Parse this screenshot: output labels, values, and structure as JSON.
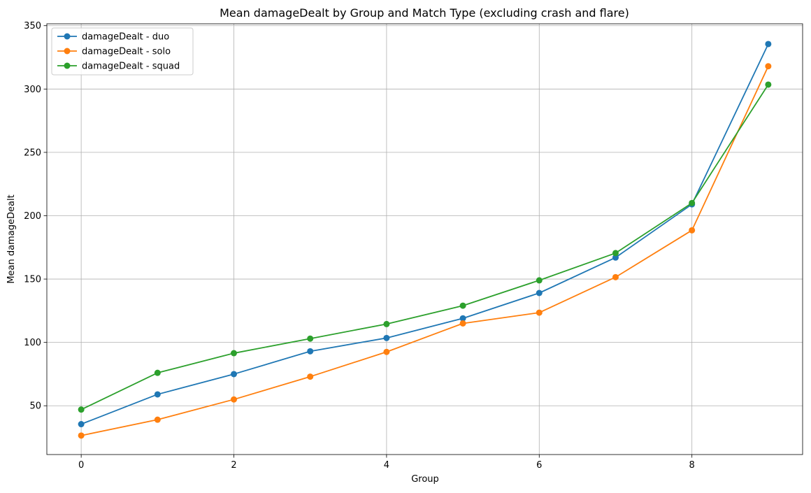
{
  "chart_data": {
    "type": "line",
    "title": "Mean damageDealt by Group and Match Type (excluding crash and flare)",
    "xlabel": "Group",
    "ylabel": "Mean damageDealt",
    "x": [
      0,
      1,
      2,
      3,
      4,
      5,
      6,
      7,
      8,
      9
    ],
    "xlim": [
      -0.45,
      9.45
    ],
    "ylim": [
      11.5,
      351.5
    ],
    "xticks": [
      0,
      2,
      4,
      6,
      8
    ],
    "yticks": [
      50,
      100,
      150,
      200,
      250,
      300,
      350
    ],
    "grid": true,
    "legend_position": "upper-left",
    "marker": "circle",
    "series": [
      {
        "name": "damageDealt - duo",
        "color": "#1f77b4",
        "values": [
          35.5,
          59,
          75,
          93,
          103.5,
          119,
          139,
          167,
          209,
          335.5
        ]
      },
      {
        "name": "damageDealt - solo",
        "color": "#ff7f0e",
        "values": [
          26.5,
          39,
          55,
          73,
          92.5,
          115,
          123.5,
          151.5,
          188.5,
          318
        ]
      },
      {
        "name": "damageDealt - squad",
        "color": "#2ca02c",
        "values": [
          47,
          76,
          91.5,
          103,
          114.5,
          129,
          149,
          170.5,
          210,
          303.5
        ]
      }
    ]
  }
}
